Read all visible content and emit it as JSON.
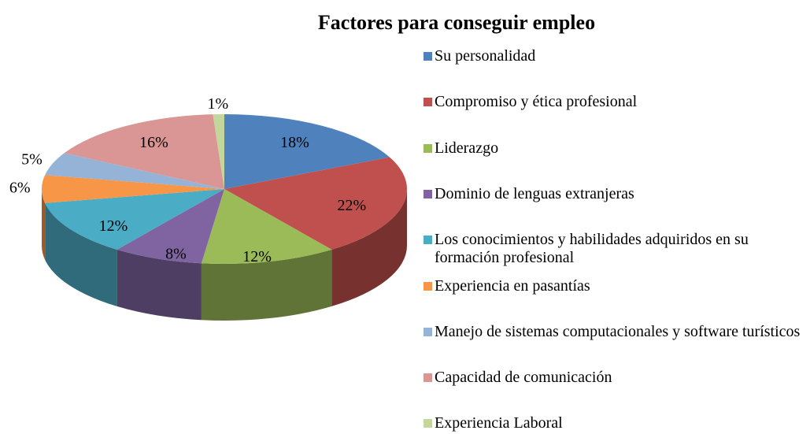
{
  "chart_data": {
    "type": "pie",
    "title": "Factores para conseguir empleo",
    "categories": [
      "Su personalidad",
      "Compromiso y ética profesional",
      "Liderazgo",
      "Dominio de lenguas extranjeras",
      "Los conocimientos y habilidades adquiridos en su formación profesional",
      "Experiencia en pasantías",
      "Manejo de sistemas computacionales y software turísticos",
      "Capacidad de comunicación",
      "Experiencia Laboral"
    ],
    "values": [
      18,
      22,
      12,
      8,
      12,
      6,
      5,
      16,
      1
    ],
    "value_labels": [
      "18%",
      "22%",
      "12%",
      "8%",
      "12%",
      "6%",
      "5%",
      "16%",
      "1%"
    ],
    "colors": [
      "#4f81bd",
      "#c0504d",
      "#9bbb59",
      "#8064a2",
      "#4bacc6",
      "#f79646",
      "#95b3d7",
      "#d99694",
      "#c3d69b"
    ],
    "legend": "right"
  }
}
